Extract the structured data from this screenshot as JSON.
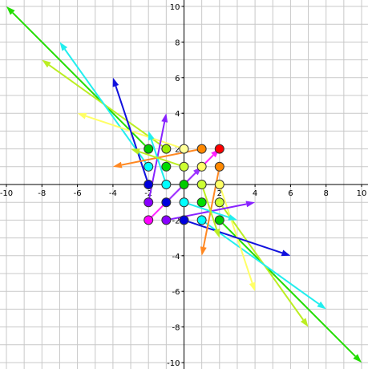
{
  "chart_data": {
    "type": "vector-field",
    "xlim": [
      -10,
      10
    ],
    "ylim": [
      -10,
      10
    ],
    "xticks": [
      -10,
      -8,
      -6,
      -4,
      -2,
      2,
      4,
      6,
      8,
      10
    ],
    "yticks": [
      -10,
      -8,
      -6,
      -4,
      -2,
      2,
      4,
      6,
      8,
      10
    ],
    "grid": true,
    "grid_step": 1,
    "points": [
      {
        "x": -2,
        "y": 2,
        "color": "#00cc00"
      },
      {
        "x": -1,
        "y": 2,
        "color": "#99ee00"
      },
      {
        "x": 0,
        "y": 2,
        "color": "#ffff99"
      },
      {
        "x": 1,
        "y": 2,
        "color": "#ff8800"
      },
      {
        "x": 2,
        "y": 2,
        "color": "#ff0000"
      },
      {
        "x": -2,
        "y": 1,
        "color": "#00ffff"
      },
      {
        "x": -1,
        "y": 1,
        "color": "#00dd00"
      },
      {
        "x": 0,
        "y": 1,
        "color": "#ccff33"
      },
      {
        "x": 1,
        "y": 1,
        "color": "#ffff66"
      },
      {
        "x": 2,
        "y": 1,
        "color": "#ff8800"
      },
      {
        "x": -2,
        "y": 0,
        "color": "#0000dd"
      },
      {
        "x": -1,
        "y": 0,
        "color": "#00ffff"
      },
      {
        "x": 0,
        "y": 0,
        "color": "#00cc00"
      },
      {
        "x": 1,
        "y": 0,
        "color": "#ccff33"
      },
      {
        "x": 2,
        "y": 0,
        "color": "#ffff66"
      },
      {
        "x": -2,
        "y": -1,
        "color": "#8800ff"
      },
      {
        "x": -1,
        "y": -1,
        "color": "#0000dd"
      },
      {
        "x": 0,
        "y": -1,
        "color": "#00ffff"
      },
      {
        "x": 1,
        "y": -1,
        "color": "#00dd00"
      },
      {
        "x": 2,
        "y": -1,
        "color": "#ccff33"
      },
      {
        "x": -2,
        "y": -2,
        "color": "#ff00ff"
      },
      {
        "x": -1,
        "y": -2,
        "color": "#8800ff"
      },
      {
        "x": 0,
        "y": -2,
        "color": "#0000dd"
      },
      {
        "x": 1,
        "y": -2,
        "color": "#00ffff"
      },
      {
        "x": 2,
        "y": -2,
        "color": "#00cc00"
      }
    ],
    "vectors": [
      {
        "x": -2,
        "y": 2,
        "x2": -10,
        "y2": 10,
        "color": "#22dd00"
      },
      {
        "x": 2,
        "y": -2,
        "x2": 10,
        "y2": -10,
        "color": "#22dd00"
      },
      {
        "x": -1,
        "y": 2,
        "x2": -8,
        "y2": 7,
        "color": "#bbee22"
      },
      {
        "x": 2,
        "y": -1,
        "x2": 7,
        "y2": -8,
        "color": "#bbee22"
      },
      {
        "x": -2,
        "y": 1,
        "x2": -7,
        "y2": 8,
        "color": "#22eeee"
      },
      {
        "x": 1,
        "y": -2,
        "x2": 8,
        "y2": -7,
        "color": "#22eeee"
      },
      {
        "x": 0,
        "y": 2,
        "x2": -6,
        "y2": 4,
        "color": "#ffff66"
      },
      {
        "x": 2,
        "y": 0,
        "x2": 4,
        "y2": -6,
        "color": "#ffff66"
      },
      {
        "x": -2,
        "y": 0,
        "x2": -4,
        "y2": 6,
        "color": "#1111dd"
      },
      {
        "x": 0,
        "y": -2,
        "x2": 6,
        "y2": -4,
        "color": "#1111dd"
      },
      {
        "x": -2,
        "y": -1,
        "x2": -1,
        "y2": 4,
        "color": "#8822ff"
      },
      {
        "x": -1,
        "y": -2,
        "x2": 4,
        "y2": -1,
        "color": "#8822ff"
      },
      {
        "x": -2,
        "y": -2,
        "x2": 2,
        "y2": 2,
        "color": "#ff22ff"
      },
      {
        "x": 1,
        "y": 2,
        "x2": -4,
        "y2": 1,
        "color": "#ff8822"
      },
      {
        "x": 2,
        "y": 1,
        "x2": 1,
        "y2": -4,
        "color": "#ff8822"
      },
      {
        "x": -1,
        "y": 0,
        "x2": -2,
        "y2": 3,
        "color": "#22eeee"
      },
      {
        "x": 0,
        "y": -1,
        "x2": 3,
        "y2": -2,
        "color": "#22eeee"
      },
      {
        "x": 0,
        "y": 1,
        "x2": -3,
        "y2": 2,
        "color": "#bbee22"
      },
      {
        "x": 1,
        "y": 0,
        "x2": 2,
        "y2": -3,
        "color": "#bbee22"
      },
      {
        "x": -1,
        "y": -1,
        "x2": 1,
        "y2": 1,
        "color": "#9933ff"
      }
    ]
  }
}
